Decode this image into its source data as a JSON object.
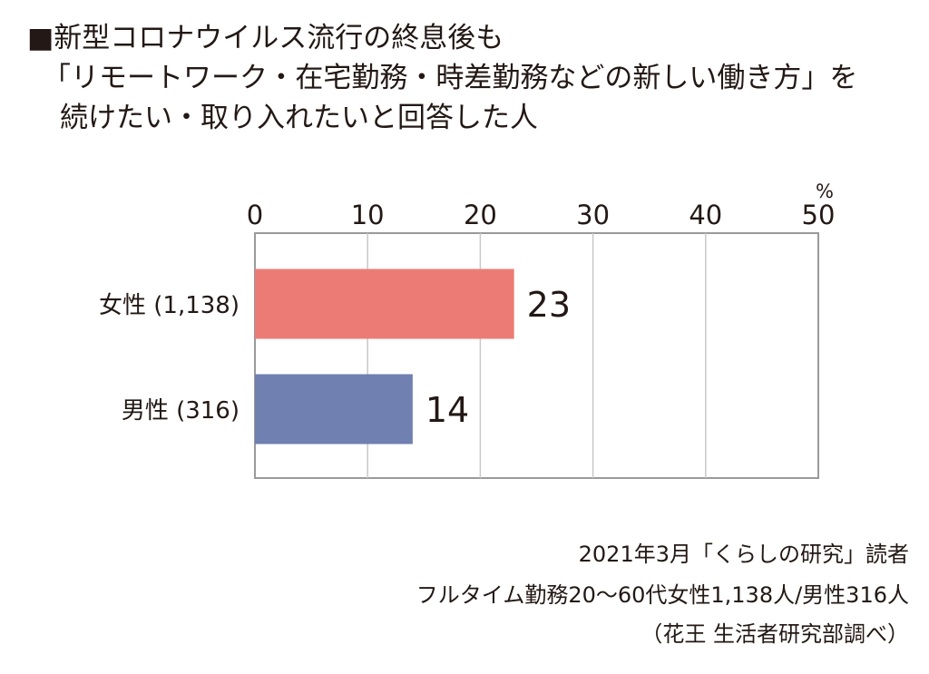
{
  "title": {
    "line1": "■新型コロナウイルス流行の終息後も",
    "line2": "「リモートワーク・在宅勤務・時差勤務などの新しい働き方」を",
    "line3": "続けたい・取り入れたいと回答した人"
  },
  "source": {
    "line1": "2021年3月「くらしの研究」読者",
    "line2": "フルタイム勤務20～60代女性1,138人/男性316人",
    "line3": "（花王 生活者研究部調べ）"
  },
  "chart_data": {
    "type": "bar",
    "orientation": "horizontal",
    "categories": [
      "女性 (1,138)",
      "男性 (316)"
    ],
    "values": [
      23,
      14
    ],
    "colors": [
      "#ec7b76",
      "#6f80b1"
    ],
    "xlim": [
      0,
      50
    ],
    "ticks": [
      "0",
      "10",
      "20",
      "30",
      "40",
      "50"
    ],
    "unit": "%",
    "grid": true,
    "axis_position": "top"
  }
}
